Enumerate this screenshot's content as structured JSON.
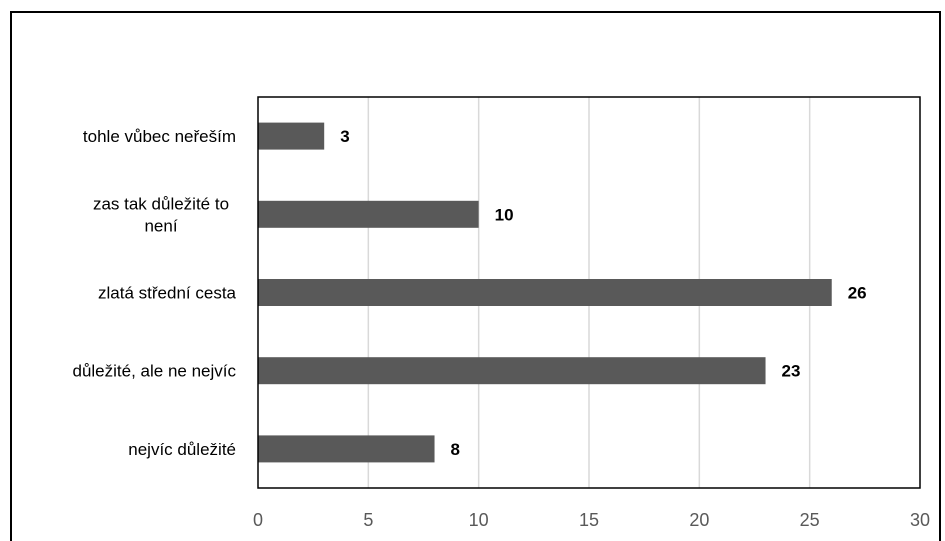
{
  "chart_data": {
    "type": "bar",
    "orientation": "horizontal",
    "categories": [
      "tohle vůbec neřeším",
      "zas tak důležité to není",
      "zlatá střední cesta",
      "důležité, ale ne nejvíc",
      "nejvíc důležité"
    ],
    "category_lines": [
      [
        "tohle vůbec neřeším"
      ],
      [
        "zas tak důležité to",
        "není"
      ],
      [
        "zlatá střední cesta"
      ],
      [
        "důležité, ale ne nejvíc"
      ],
      [
        "nejvíc důležité"
      ]
    ],
    "values": [
      3,
      10,
      26,
      23,
      8
    ],
    "xlim": [
      0,
      30
    ],
    "xticks": [
      0,
      5,
      10,
      15,
      20,
      25,
      30
    ],
    "grid": true,
    "title": "",
    "xlabel": "",
    "ylabel": "",
    "bar_color": "#595959",
    "gridline_color": "#d9d9d9",
    "data_labels_bold": true
  }
}
